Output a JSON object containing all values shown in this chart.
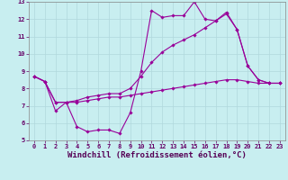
{
  "xlabel": "Windchill (Refroidissement éolien,°C)",
  "background_color": "#c8eef0",
  "grid_color": "#b0d8dc",
  "line_color": "#990099",
  "xlim": [
    -0.5,
    23.5
  ],
  "ylim": [
    5,
    13
  ],
  "x_ticks": [
    0,
    1,
    2,
    3,
    4,
    5,
    6,
    7,
    8,
    9,
    10,
    11,
    12,
    13,
    14,
    15,
    16,
    17,
    18,
    19,
    20,
    21,
    22,
    23
  ],
  "y_ticks": [
    5,
    6,
    7,
    8,
    9,
    10,
    11,
    12,
    13
  ],
  "line1_x": [
    0,
    1,
    2,
    3,
    4,
    5,
    6,
    7,
    8,
    9,
    10,
    11,
    12,
    13,
    14,
    15,
    16,
    17,
    18,
    19,
    20,
    21,
    22,
    23
  ],
  "line1_y": [
    8.7,
    8.4,
    6.7,
    7.2,
    5.8,
    5.5,
    5.6,
    5.6,
    5.4,
    6.6,
    9.0,
    12.5,
    12.1,
    12.2,
    12.2,
    13.0,
    12.0,
    11.9,
    12.4,
    11.4,
    9.3,
    8.5,
    8.3,
    8.3
  ],
  "line2_x": [
    0,
    1,
    2,
    3,
    4,
    5,
    6,
    7,
    8,
    9,
    10,
    11,
    12,
    13,
    14,
    15,
    16,
    17,
    18,
    19,
    20,
    21,
    22,
    23
  ],
  "line2_y": [
    8.7,
    8.4,
    7.2,
    7.2,
    7.2,
    7.3,
    7.4,
    7.5,
    7.5,
    7.6,
    7.7,
    7.8,
    7.9,
    8.0,
    8.1,
    8.2,
    8.3,
    8.4,
    8.5,
    8.5,
    8.4,
    8.3,
    8.3,
    8.3
  ],
  "line3_x": [
    0,
    1,
    2,
    3,
    4,
    5,
    6,
    7,
    8,
    9,
    10,
    11,
    12,
    13,
    14,
    15,
    16,
    17,
    18,
    19,
    20,
    21,
    22,
    23
  ],
  "line3_y": [
    8.7,
    8.4,
    7.2,
    7.2,
    7.3,
    7.5,
    7.6,
    7.7,
    7.7,
    8.0,
    8.7,
    9.5,
    10.1,
    10.5,
    10.8,
    11.1,
    11.5,
    11.9,
    12.3,
    11.4,
    9.3,
    8.5,
    8.3,
    8.3
  ],
  "marker": "D",
  "marker_size": 1.8,
  "line_width": 0.8,
  "tick_fontsize": 5,
  "xlabel_fontsize": 6.5
}
